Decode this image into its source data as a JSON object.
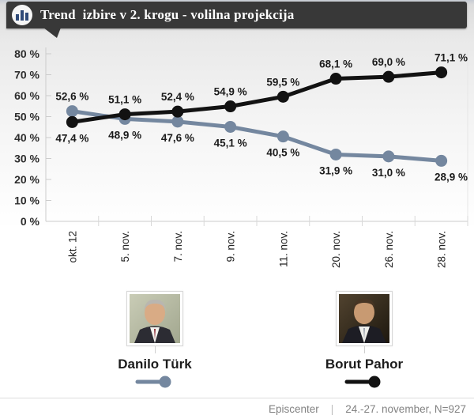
{
  "header": {
    "title": "Trend  izbire v 2. krogu - volilna projekcija",
    "icon": "bar-chart-icon"
  },
  "chart_data": {
    "type": "line",
    "categories": [
      "okt. 12",
      "5. nov.",
      "7. nov.",
      "9. nov.",
      "11. nov.",
      "20. nov.",
      "26. nov.",
      "28. nov."
    ],
    "series": [
      {
        "name": "Danilo Türk",
        "color": "#74879f",
        "values": [
          52.6,
          48.9,
          47.6,
          45.1,
          40.5,
          31.9,
          31.0,
          28.9
        ],
        "labels": [
          "52,6 %",
          "48,9 %",
          "47,6 %",
          "45,1 %",
          "40,5 %",
          "31,9 %",
          "31,0 %",
          "28,9 %"
        ]
      },
      {
        "name": "Borut Pahor",
        "color": "#121212",
        "values": [
          47.4,
          51.1,
          52.4,
          54.9,
          59.5,
          68.1,
          69.0,
          71.1
        ],
        "labels": [
          "47,4 %",
          "51,1 %",
          "52,4 %",
          "54,9 %",
          "59,5 %",
          "68,1 %",
          "69,0 %",
          "71,1 %"
        ]
      }
    ],
    "ylim": [
      0,
      80
    ],
    "ytick_step": 10,
    "yticks": [
      "0 %",
      "10 %",
      "20 %",
      "30 %",
      "40 %",
      "50 %",
      "60 %",
      "70 %",
      "80 %"
    ],
    "grid": "off",
    "legend_position": "bottom"
  },
  "legend": {
    "items": [
      {
        "name": "Danilo Türk",
        "color": "#74879f",
        "photo": "danilo-turk-photo"
      },
      {
        "name": "Borut Pahor",
        "color": "#121212",
        "photo": "borut-pahor-photo"
      }
    ]
  },
  "footer": {
    "source": "Episcenter",
    "separator": "|",
    "note": "24.-27. november, N=927"
  }
}
